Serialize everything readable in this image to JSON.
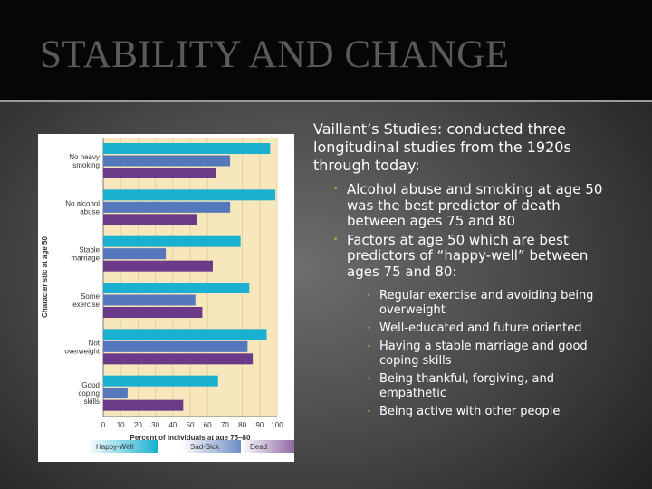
{
  "title": "STABILITY AND CHANGE",
  "intro": "Vaillant’s Studies: conducted three longitudinal studies from the 1920s through today:",
  "bullets": [
    "Alcohol abuse and smoking at age 50 was the best predictor of death between ages 75 and 80",
    "Factors at age 50 which are best predictors of “happy-well” between ages 75 and 80:"
  ],
  "sub_bullets": [
    "Regular exercise and avoiding being overweight",
    "Well-educated and future oriented",
    "Having a stable marriage and good coping skills",
    "Being thankful, forgiving, and empathetic",
    "Being active with other people"
  ],
  "colors": {
    "happy_well": "#1ab0cf",
    "sad_sick": "#5577bb",
    "dead": "#6b3a88",
    "plot_bg": "#f7e7bd",
    "bullet": "#c8a13a"
  },
  "chart_data": {
    "type": "bar",
    "orientation": "horizontal",
    "categories": [
      "No heavy smoking",
      "No alcohol abuse",
      "Stable marriage",
      "Some exercise",
      "Not overweight",
      "Good coping skills"
    ],
    "series": [
      {
        "name": "Happy-Well",
        "values": [
          96,
          99,
          79,
          84,
          94,
          66
        ]
      },
      {
        "name": "Sad-Sick",
        "values": [
          73,
          73,
          36,
          53,
          83,
          14
        ]
      },
      {
        "name": "Dead",
        "values": [
          65,
          54,
          63,
          57,
          86,
          46
        ]
      }
    ],
    "xlabel": "Percent of individuals at age 75–80",
    "ylabel": "Characteristic at age 50",
    "xlim": [
      0,
      100
    ],
    "xticks": [
      "0",
      "10",
      "20",
      "30",
      "40",
      "50",
      "60",
      "70",
      "80",
      "90",
      "100"
    ],
    "legend_position": "bottom",
    "grid": true
  }
}
